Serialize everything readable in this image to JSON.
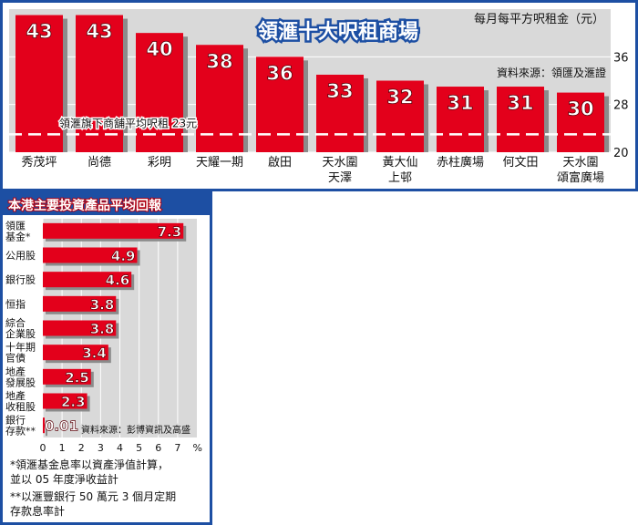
{
  "colors": {
    "frame": "#1d4fa3",
    "bar": "#e3001b",
    "bar_shadow": "#8b8b8b",
    "plot_bg": "#d9d9d9",
    "gridline": "#ffffff",
    "value_label": "#ffffff"
  },
  "chart_data": [
    {
      "type": "bar",
      "title": "領滙十大呎租商場",
      "unit_label": "每月每平方呎租金（元）",
      "source": "資料來源：領匯及滙證",
      "reference_line": {
        "value": 23,
        "label": "領滙旗下商舖平均呎租 23元"
      },
      "ylim": [
        20,
        44
      ],
      "y_ticks": [
        20,
        28,
        36
      ],
      "grid": true,
      "categories": [
        [
          "秀茂坪"
        ],
        [
          "尚德"
        ],
        [
          "彩明"
        ],
        [
          "天耀一期"
        ],
        [
          "啟田"
        ],
        [
          "天水圍",
          "天澤"
        ],
        [
          "黃大仙",
          "上邨"
        ],
        [
          "赤柱廣場"
        ],
        [
          "何文田"
        ],
        [
          "天水圍",
          "頌富廣場"
        ]
      ],
      "values": [
        43,
        43,
        40,
        38,
        36,
        33,
        32,
        31,
        31,
        30
      ]
    },
    {
      "type": "bar",
      "orientation": "horizontal",
      "title": "本港主要投資產品平均回報",
      "unit_label": "%",
      "source": "資料來源：彭博資訊及高盛",
      "xlim": [
        0,
        8
      ],
      "x_ticks": [
        0,
        1,
        2,
        3,
        4,
        5,
        6,
        7
      ],
      "grid": true,
      "categories": [
        [
          "領匯",
          "基金*"
        ],
        [
          "公用股"
        ],
        [
          "銀行股"
        ],
        [
          "恒指"
        ],
        [
          "綜合",
          "企業股"
        ],
        [
          "十年期",
          "官債"
        ],
        [
          "地產",
          "發展股"
        ],
        [
          "地產",
          "收租股"
        ],
        [
          "銀行",
          "存款**"
        ]
      ],
      "values": [
        7.3,
        4.9,
        4.6,
        3.8,
        3.8,
        3.4,
        2.5,
        2.3,
        0.01
      ],
      "value_labels": [
        "7.3",
        "4.9",
        "4.6",
        "3.8",
        "3.8",
        "3.4",
        "2.5",
        "2.3",
        "0.01"
      ],
      "notes": [
        "*領滙基金息率以資產淨值計算，",
        "  並以 05 年度淨收益計",
        "**以滙豐銀行 50 萬元 3 個月定期",
        "  存款息率計"
      ]
    }
  ]
}
